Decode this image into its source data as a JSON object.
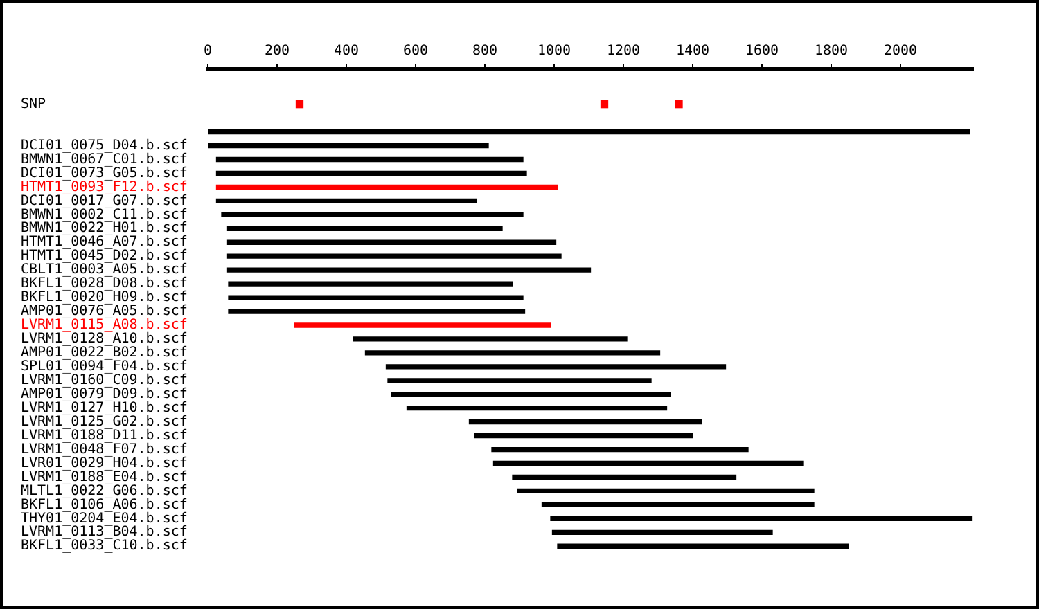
{
  "chart_data": {
    "type": "bar",
    "orientation": "horizontal",
    "categories": [
      "SNP",
      null,
      null,
      "DCI01_0075_D04.b.scf",
      "BMWN1_0067_C01.b.scf",
      "DCI01_0073_G05.b.scf",
      "HTMT1_0093_F12.b.scf",
      "DCI01_0017_G07.b.scf",
      "BMWN1_0002_C11.b.scf",
      "BMWN1_0022_H01.b.scf",
      "HTMT1_0046_A07.b.scf",
      "HTMT1_0045_D02.b.scf",
      "CBLT1_0003_A05.b.scf",
      "BKFL1_0028_D08.b.scf",
      "BKFL1_0020_H09.b.scf",
      "AMP01_0076_A05.b.scf",
      "LVRM1_0115_A08.b.scf",
      "LVRM1_0128_A10.b.scf",
      "AMP01_0022_B02.b.scf",
      "SPL01_0094_F04.b.scf",
      "LVRM1_0160_C09.b.scf",
      "AMP01_0079_D09.b.scf",
      "LVRM1_0127_H10.b.scf",
      "LVRM1_0125_G02.b.scf",
      "LVRM1_0188_D11.b.scf",
      "LVRM1_0048_F07.b.scf",
      "LVR01_0029_H04.b.scf",
      "LVRM1_0188_E04.b.scf",
      "MLTL1_0022_G06.b.scf",
      "BKFL1_0106_A06.b.scf",
      "THY01_0204_E04.b.scf",
      "LVRM1_0113_B04.b.scf",
      "BKFL1_0033_C10.b.scf"
    ],
    "series": [
      {
        "base": [
          null,
          null,
          0,
          0,
          25,
          25,
          25,
          25,
          40,
          55,
          55,
          55,
          55,
          60,
          60,
          60,
          250,
          420,
          455,
          515,
          520,
          530,
          575,
          755,
          770,
          820,
          825,
          880,
          895,
          965,
          990,
          995,
          1010
        ],
        "values": [
          null,
          null,
          2200,
          810,
          885,
          895,
          985,
          750,
          870,
          795,
          950,
          965,
          1050,
          820,
          850,
          855,
          740,
          790,
          850,
          980,
          760,
          805,
          750,
          670,
          630,
          740,
          895,
          645,
          855,
          785,
          1215,
          635,
          840
        ],
        "colors": [
          "#000000",
          "#000000",
          "#000000",
          "#000000",
          "#000000",
          "#000000",
          "#ff0000",
          "#000000",
          "#000000",
          "#000000",
          "#000000",
          "#000000",
          "#000000",
          "#000000",
          "#000000",
          "#000000",
          "#ff0000",
          "#000000",
          "#000000",
          "#000000",
          "#000000",
          "#000000",
          "#000000",
          "#000000",
          "#000000",
          "#000000",
          "#000000",
          "#000000",
          "#000000",
          "#000000",
          "#000000",
          "#000000",
          "#000000"
        ]
      },
      {
        "type": "scatter",
        "x": [
          "SNP",
          "SNP",
          "SNP"
        ],
        "values": [
          265,
          1145,
          1360
        ],
        "color": "#ff0000",
        "marker": "square"
      }
    ],
    "xlim": [
      0,
      2210
    ],
    "xticks": [
      0,
      200,
      400,
      600,
      800,
      1000,
      1200,
      1400,
      1600,
      1800,
      2000
    ]
  }
}
